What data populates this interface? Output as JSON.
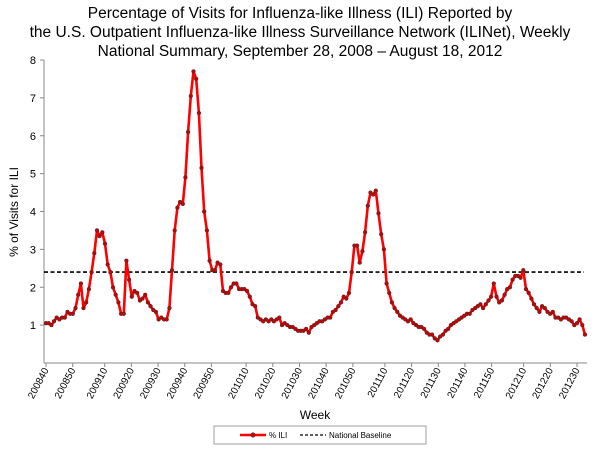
{
  "chart_data": {
    "type": "line",
    "title_lines": [
      "Percentage of Visits for Influenza-like Illness (ILI) Reported by",
      "the U.S. Outpatient Influenza-like Illness Surveillance Network (ILINet), Weekly",
      "National Summary, September 28, 2008 – August 18, 2012"
    ],
    "xlabel": "Week",
    "ylabel": "% of Visits for ILI",
    "ylim": [
      0,
      8
    ],
    "yticks": [
      1,
      2,
      3,
      4,
      5,
      6,
      7,
      8
    ],
    "week_count": 203,
    "xticks": [
      {
        "label": "200840",
        "week_index": 0
      },
      {
        "label": "200850",
        "week_index": 10
      },
      {
        "label": "200910",
        "week_index": 22
      },
      {
        "label": "200920",
        "week_index": 32
      },
      {
        "label": "200930",
        "week_index": 42
      },
      {
        "label": "200940",
        "week_index": 52
      },
      {
        "label": "200950",
        "week_index": 62
      },
      {
        "label": "201010",
        "week_index": 75
      },
      {
        "label": "201020",
        "week_index": 85
      },
      {
        "label": "201030",
        "week_index": 95
      },
      {
        "label": "201040",
        "week_index": 105
      },
      {
        "label": "201050",
        "week_index": 115
      },
      {
        "label": "201110",
        "week_index": 127
      },
      {
        "label": "201120",
        "week_index": 137
      },
      {
        "label": "201130",
        "week_index": 147
      },
      {
        "label": "201140",
        "week_index": 157
      },
      {
        "label": "201150",
        "week_index": 167
      },
      {
        "label": "201210",
        "week_index": 179
      },
      {
        "label": "201220",
        "week_index": 189
      },
      {
        "label": "201230",
        "week_index": 199
      }
    ],
    "series": [
      {
        "name": "% ILI",
        "color": "#ff0000",
        "marker_color": "#cc0000",
        "values": [
          1.05,
          1.05,
          1.0,
          1.1,
          1.2,
          1.15,
          1.2,
          1.2,
          1.35,
          1.3,
          1.3,
          1.45,
          1.8,
          2.1,
          1.45,
          1.6,
          1.95,
          2.4,
          2.9,
          3.5,
          3.35,
          3.45,
          3.15,
          2.6,
          2.4,
          2.0,
          1.8,
          1.6,
          1.3,
          1.3,
          2.7,
          2.2,
          1.75,
          1.9,
          1.85,
          1.65,
          1.7,
          1.8,
          1.6,
          1.5,
          1.4,
          1.35,
          1.15,
          1.2,
          1.15,
          1.15,
          1.45,
          2.45,
          3.5,
          4.1,
          4.25,
          4.2,
          4.9,
          6.1,
          7.05,
          7.7,
          7.5,
          6.6,
          5.15,
          4.0,
          3.5,
          2.7,
          2.45,
          2.45,
          2.65,
          2.6,
          1.9,
          1.85,
          1.85,
          2.0,
          2.1,
          2.1,
          1.95,
          1.95,
          1.95,
          1.9,
          1.75,
          1.55,
          1.5,
          1.2,
          1.15,
          1.1,
          1.15,
          1.1,
          1.15,
          1.1,
          1.15,
          1.2,
          1.0,
          1.05,
          1.0,
          0.95,
          0.95,
          0.9,
          0.85,
          0.85,
          0.85,
          0.9,
          0.8,
          0.95,
          1.0,
          1.05,
          1.1,
          1.1,
          1.15,
          1.2,
          1.2,
          1.35,
          1.4,
          1.5,
          1.6,
          1.75,
          1.7,
          1.85,
          2.4,
          3.1,
          3.1,
          2.65,
          2.95,
          3.45,
          4.15,
          4.5,
          4.45,
          4.55,
          3.95,
          3.4,
          3.0,
          2.1,
          1.85,
          1.6,
          1.45,
          1.35,
          1.25,
          1.2,
          1.15,
          1.1,
          1.15,
          1.05,
          1.0,
          0.95,
          0.95,
          0.9,
          0.8,
          0.75,
          0.75,
          0.65,
          0.6,
          0.7,
          0.75,
          0.85,
          0.9,
          1.0,
          1.05,
          1.1,
          1.15,
          1.2,
          1.25,
          1.3,
          1.3,
          1.4,
          1.45,
          1.5,
          1.55,
          1.45,
          1.55,
          1.65,
          1.75,
          2.1,
          1.75,
          1.6,
          1.65,
          1.8,
          1.95,
          2.0,
          2.2,
          2.3,
          2.3,
          2.25,
          2.45,
          1.95,
          1.85,
          1.7,
          1.55,
          1.45,
          1.35,
          1.5,
          1.45,
          1.35,
          1.3,
          1.35,
          1.2,
          1.2,
          1.15,
          1.2,
          1.2,
          1.15,
          1.1,
          1.0,
          1.05,
          1.15,
          1.0,
          0.75
        ]
      },
      {
        "name": "National Baseline",
        "color": "#000000",
        "constant": 2.4
      }
    ],
    "legend": {
      "placement": "bottom-center",
      "items": [
        "% ILI",
        "National Baseline"
      ]
    },
    "grid": false
  }
}
